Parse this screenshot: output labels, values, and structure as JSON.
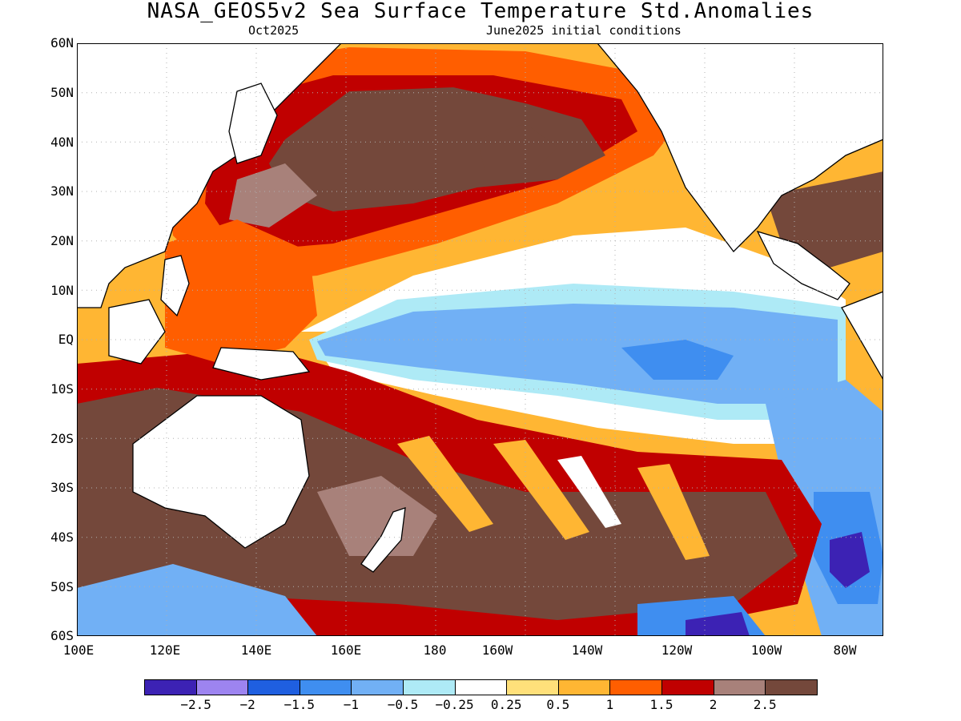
{
  "title": "NASA_GEOS5v2 Sea Surface Temperature Std.Anomalies",
  "subtitle_left": "Oct2025",
  "subtitle_right": "June2025 initial conditions",
  "lat_labels": [
    "60N",
    "50N",
    "40N",
    "30N",
    "20N",
    "10N",
    "EQ",
    "10S",
    "20S",
    "30S",
    "40S",
    "50S",
    "60S"
  ],
  "lon_labels": [
    "100E",
    "120E",
    "140E",
    "160E",
    "180",
    "160W",
    "140W",
    "120W",
    "100W",
    "80W"
  ],
  "colorbar": {
    "colors": [
      "#3c22b4",
      "#9d84f0",
      "#1f5fe0",
      "#3f8ef0",
      "#71b0f5",
      "#aeeaf6",
      "#ffffff",
      "#ffe07a",
      "#ffb633",
      "#ff5e00",
      "#c00000",
      "#a8817a",
      "#74483b"
    ],
    "labels": [
      "−2.5",
      "−2",
      "−1.5",
      "−1",
      "−0.5",
      "−0.25",
      "0.25",
      "0.5",
      "1",
      "1.5",
      "2",
      "2.5"
    ]
  },
  "map_colors": {
    "land": "#ffffff",
    "coast": "#000000",
    "grid": "#b0b0b0"
  }
}
